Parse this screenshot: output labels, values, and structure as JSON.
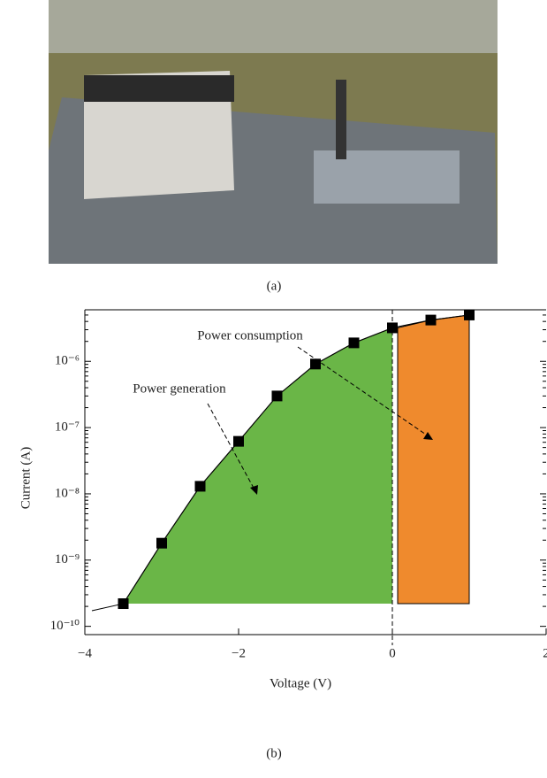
{
  "captions": {
    "a": "(a)",
    "b": "(b)"
  },
  "chart_data": {
    "type": "line",
    "xlabel": "Voltage (V)",
    "ylabel": "Current (A)",
    "ylog": true,
    "x": [
      -3.5,
      -3,
      -2.5,
      -2,
      -1.5,
      -1,
      -0.5,
      0,
      0.5,
      1
    ],
    "values": [
      2.2e-10,
      1.8e-09,
      1.3e-08,
      6.2e-08,
      3e-07,
      9.1e-07,
      1.9e-06,
      3.2e-06,
      4.2e-06,
      5e-06
    ],
    "color": "#000000",
    "fill_colors": [
      "#6ab647",
      "#ef8a2d"
    ],
    "xlim": [
      -4,
      2
    ],
    "xticks": [
      {
        "value": -4,
        "label": "−4"
      },
      {
        "value": -2,
        "label": "−2"
      },
      0,
      2
    ],
    "ylim": [
      7.5e-11,
      6e-06
    ],
    "yticks": [
      {
        "value": 1e-10,
        "label": "10⁻¹⁰"
      },
      {
        "value": 1e-09,
        "label": "10⁻⁹"
      },
      {
        "value": 1e-08,
        "label": "10⁻⁸"
      },
      {
        "value": 1e-07,
        "label": "10⁻⁷"
      },
      {
        "value": 1e-06,
        "label": "10⁻⁶"
      }
    ],
    "annotations": [
      "Power consumption",
      "Power generation"
    ]
  }
}
